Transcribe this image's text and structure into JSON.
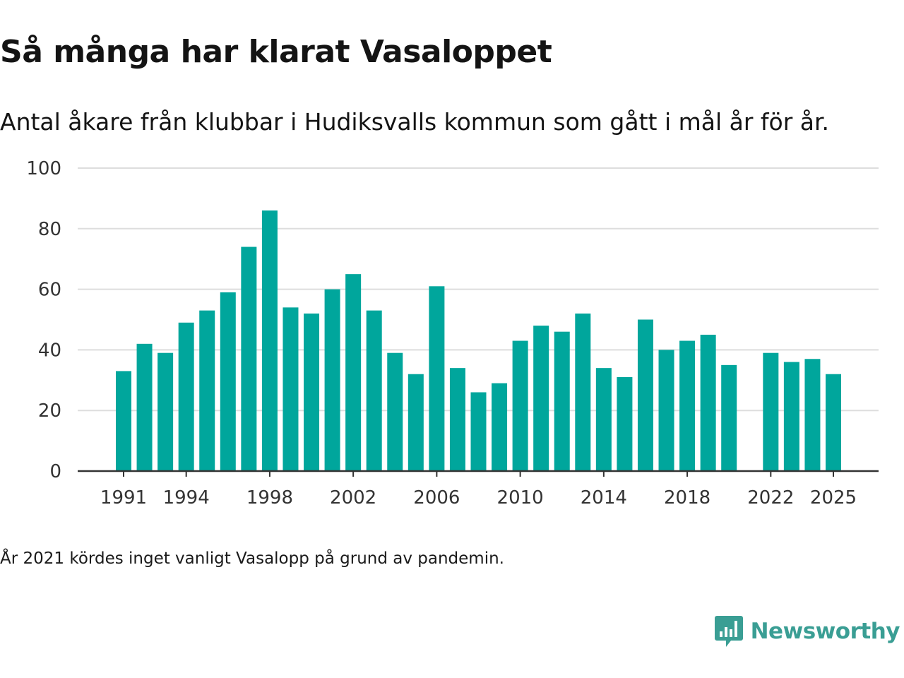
{
  "title": "Så många har klarat Vasaloppet",
  "subtitle": "Antal åkare från klubbar i Hudiksvalls kommun som gått i mål år för år.",
  "note": "År 2021 kördes inget vanligt Vasalopp på grund av pandemin.",
  "brand": {
    "name": "Newsworthy",
    "color": "#3a9e94"
  },
  "colors": {
    "bar": "#00a69c",
    "grid": "#dddddd",
    "axis": "#333333",
    "text": "#333333"
  },
  "chart_data": {
    "type": "bar",
    "title": "Så många har klarat Vasaloppet",
    "xlabel": "",
    "ylabel": "",
    "ylim": [
      0,
      100
    ],
    "yticks": [
      0,
      20,
      40,
      60,
      80,
      100
    ],
    "xticks": [
      1991,
      1994,
      1998,
      2002,
      2006,
      2010,
      2014,
      2018,
      2022,
      2025
    ],
    "grid": true,
    "legend": "none",
    "categories": [
      1991,
      1992,
      1993,
      1994,
      1995,
      1996,
      1997,
      1998,
      1999,
      2000,
      2001,
      2002,
      2003,
      2004,
      2005,
      2006,
      2007,
      2008,
      2009,
      2010,
      2011,
      2012,
      2013,
      2014,
      2015,
      2016,
      2017,
      2018,
      2019,
      2020,
      2021,
      2022,
      2023,
      2024,
      2025
    ],
    "values": [
      33,
      42,
      39,
      49,
      53,
      59,
      74,
      86,
      54,
      52,
      60,
      65,
      53,
      39,
      32,
      61,
      34,
      26,
      29,
      43,
      48,
      46,
      52,
      34,
      31,
      50,
      40,
      43,
      45,
      35,
      null,
      39,
      36,
      37,
      32
    ]
  }
}
